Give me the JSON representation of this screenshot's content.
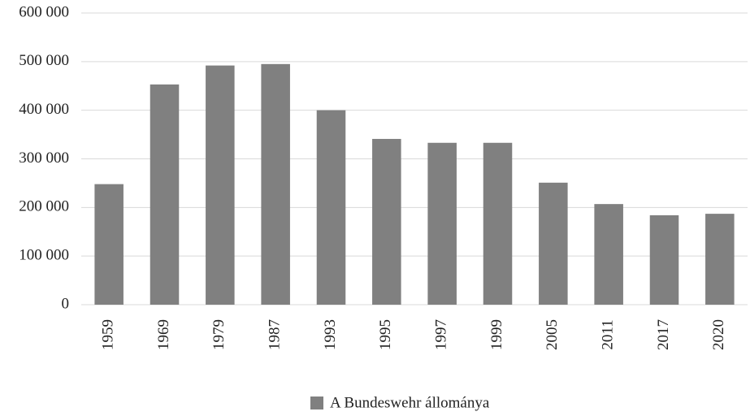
{
  "chart_data": {
    "type": "bar",
    "categories": [
      "1959",
      "1969",
      "1979",
      "1987",
      "1993",
      "1995",
      "1997",
      "1999",
      "2005",
      "2011",
      "2017",
      "2020"
    ],
    "series": [
      {
        "name": "A Bundeswehr állománya",
        "color": "#808080",
        "values": [
          248000,
          453000,
          492000,
          495000,
          400000,
          341000,
          333000,
          333000,
          251000,
          207000,
          184000,
          187000
        ]
      }
    ],
    "ylim": [
      0,
      600000
    ],
    "yticks": [
      0,
      {
        "value": 100000,
        "label": "100 000"
      },
      {
        "value": 200000,
        "label": "200 000"
      },
      {
        "value": 300000,
        "label": "300 000"
      },
      {
        "value": 400000,
        "label": "400 000"
      },
      {
        "value": 500000,
        "label": "500 000"
      },
      {
        "value": 600000,
        "label": "600 000"
      }
    ],
    "grid": true,
    "legend": "bottom"
  }
}
